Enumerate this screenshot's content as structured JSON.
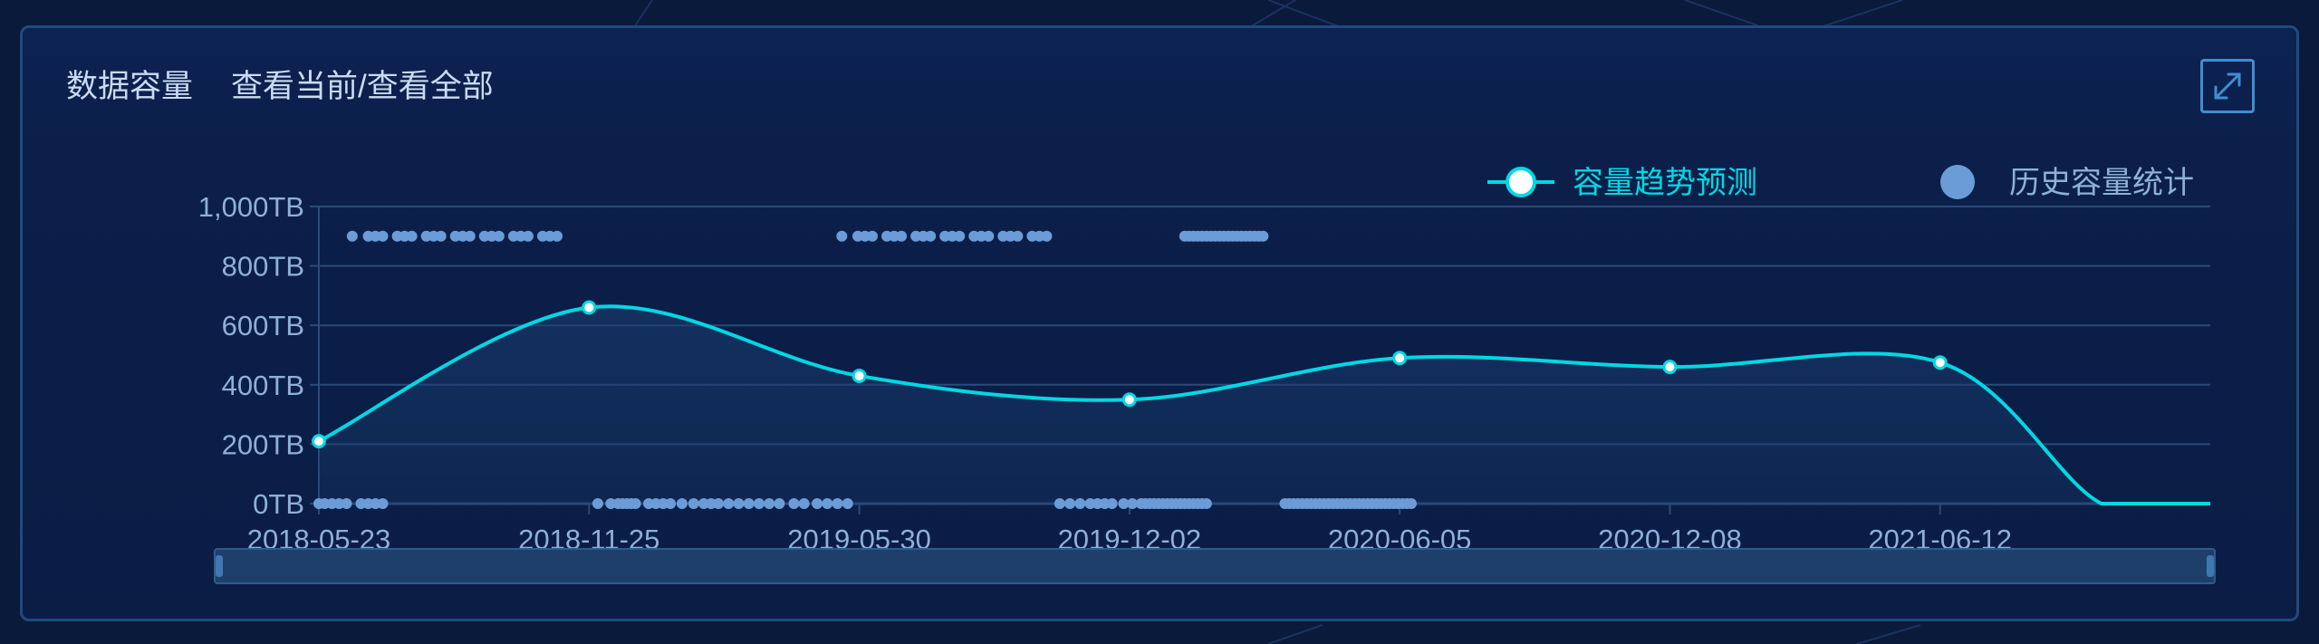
{
  "header": {
    "title": "数据容量",
    "subtitle": "查看当前/查看全部"
  },
  "toolbar": {
    "expand_icon": "expand-icon"
  },
  "colors": {
    "forecast": "#00d8e4",
    "history": "#6c9cd8",
    "grid": "#2a4a78",
    "axis_text": "#8fb0d8"
  },
  "chart_data": {
    "type": "line",
    "title": "",
    "xlabel": "",
    "ylabel": "",
    "y_unit": "TB",
    "ylim": [
      0,
      1000
    ],
    "y_ticks": [
      "0TB",
      "200TB",
      "400TB",
      "600TB",
      "800TB",
      "1,000TB"
    ],
    "y_tick_values": [
      0,
      200,
      400,
      600,
      800,
      1000
    ],
    "x_ticks": [
      "2018-05-23",
      "2018-11-25",
      "2019-05-30",
      "2019-12-02",
      "2020-06-05",
      "2020-12-08",
      "2021-06-12"
    ],
    "xlim": [
      "2018-05-23",
      "2021-12-15"
    ],
    "grid": true,
    "legend": "top-right",
    "series": [
      {
        "name": "容量趋势预测",
        "type": "line-smooth",
        "x": [
          "2018-05-23",
          "2018-11-25",
          "2019-05-30",
          "2019-12-02",
          "2020-06-05",
          "2020-12-08",
          "2021-06-12",
          "2021-10-01",
          "2021-12-15"
        ],
        "y": [
          210,
          660,
          430,
          350,
          490,
          460,
          475,
          0,
          0
        ],
        "markers": [
          "2018-05-23",
          "2018-11-25",
          "2019-05-30",
          "2019-12-02",
          "2020-06-05",
          "2020-12-08",
          "2021-06-12"
        ]
      },
      {
        "name": "历史容量统计",
        "type": "scatter",
        "groups": [
          {
            "y": 900,
            "dates": [
              "2018-06-15",
              "2018-06-26",
              "2018-07-01",
              "2018-07-06",
              "2018-07-16",
              "2018-07-21",
              "2018-07-26",
              "2018-08-05",
              "2018-08-10",
              "2018-08-15",
              "2018-08-25",
              "2018-08-30",
              "2018-09-04",
              "2018-09-14",
              "2018-09-19",
              "2018-09-24",
              "2018-10-04",
              "2018-10-09",
              "2018-10-14",
              "2018-10-24",
              "2018-10-29",
              "2018-11-03"
            ]
          },
          {
            "y": 900,
            "dates": [
              "2019-05-18",
              "2019-05-29",
              "2019-06-03",
              "2019-06-08",
              "2019-06-18",
              "2019-06-23",
              "2019-06-28",
              "2019-07-08",
              "2019-07-13",
              "2019-07-18",
              "2019-07-28",
              "2019-08-02",
              "2019-08-07",
              "2019-08-17",
              "2019-08-22",
              "2019-08-27",
              "2019-09-06",
              "2019-09-11",
              "2019-09-16",
              "2019-09-26",
              "2019-10-01",
              "2019-10-06"
            ]
          },
          {
            "y": 900,
            "dates": [
              "2020-01-09",
              "2020-01-12",
              "2020-01-15",
              "2020-01-18",
              "2020-01-21",
              "2020-01-24",
              "2020-01-27",
              "2020-01-30",
              "2020-02-02",
              "2020-02-05",
              "2020-02-08",
              "2020-02-11",
              "2020-02-14",
              "2020-02-17",
              "2020-02-20",
              "2020-02-23",
              "2020-02-26",
              "2020-02-29",
              "2020-03-03"
            ]
          },
          {
            "y": 0,
            "dates": [
              "2018-05-23",
              "2018-05-27",
              "2018-06-01",
              "2018-06-06",
              "2018-06-11",
              "2018-06-21",
              "2018-06-26",
              "2018-07-01",
              "2018-07-06"
            ]
          },
          {
            "y": 0,
            "dates": [
              "2018-12-01",
              "2018-12-10",
              "2018-12-15",
              "2018-12-18",
              "2018-12-21",
              "2018-12-24",
              "2018-12-27",
              "2019-01-05",
              "2019-01-10",
              "2019-01-15",
              "2019-01-20",
              "2019-01-28",
              "2019-02-05",
              "2019-02-12",
              "2019-02-17",
              "2019-02-22",
              "2019-03-01",
              "2019-03-08",
              "2019-03-15",
              "2019-03-22",
              "2019-03-29",
              "2019-04-05",
              "2019-04-15",
              "2019-04-22",
              "2019-05-01",
              "2019-05-08",
              "2019-05-15",
              "2019-05-22"
            ]
          },
          {
            "y": 0,
            "dates": [
              "2019-10-15",
              "2019-10-22",
              "2019-10-29",
              "2019-11-05",
              "2019-11-10",
              "2019-11-15",
              "2019-11-20",
              "2019-11-28",
              "2019-12-04",
              "2019-12-10",
              "2019-12-13",
              "2019-12-16",
              "2019-12-19",
              "2019-12-22",
              "2019-12-25",
              "2019-12-28",
              "2019-12-31",
              "2020-01-03",
              "2020-01-06",
              "2020-01-09",
              "2020-01-12",
              "2020-01-15",
              "2020-01-18",
              "2020-01-21",
              "2020-01-24"
            ]
          },
          {
            "y": 0,
            "dates": [
              "2020-03-18",
              "2020-03-21",
              "2020-03-24",
              "2020-03-27",
              "2020-03-30",
              "2020-04-02",
              "2020-04-05",
              "2020-04-08",
              "2020-04-11",
              "2020-04-14",
              "2020-04-17",
              "2020-04-20",
              "2020-04-23",
              "2020-04-26",
              "2020-04-29",
              "2020-05-02",
              "2020-05-05",
              "2020-05-08",
              "2020-05-11",
              "2020-05-14",
              "2020-05-17",
              "2020-05-20",
              "2020-05-23",
              "2020-05-26",
              "2020-05-29",
              "2020-06-01",
              "2020-06-04",
              "2020-06-07",
              "2020-06-10",
              "2020-06-13"
            ]
          }
        ]
      }
    ]
  }
}
